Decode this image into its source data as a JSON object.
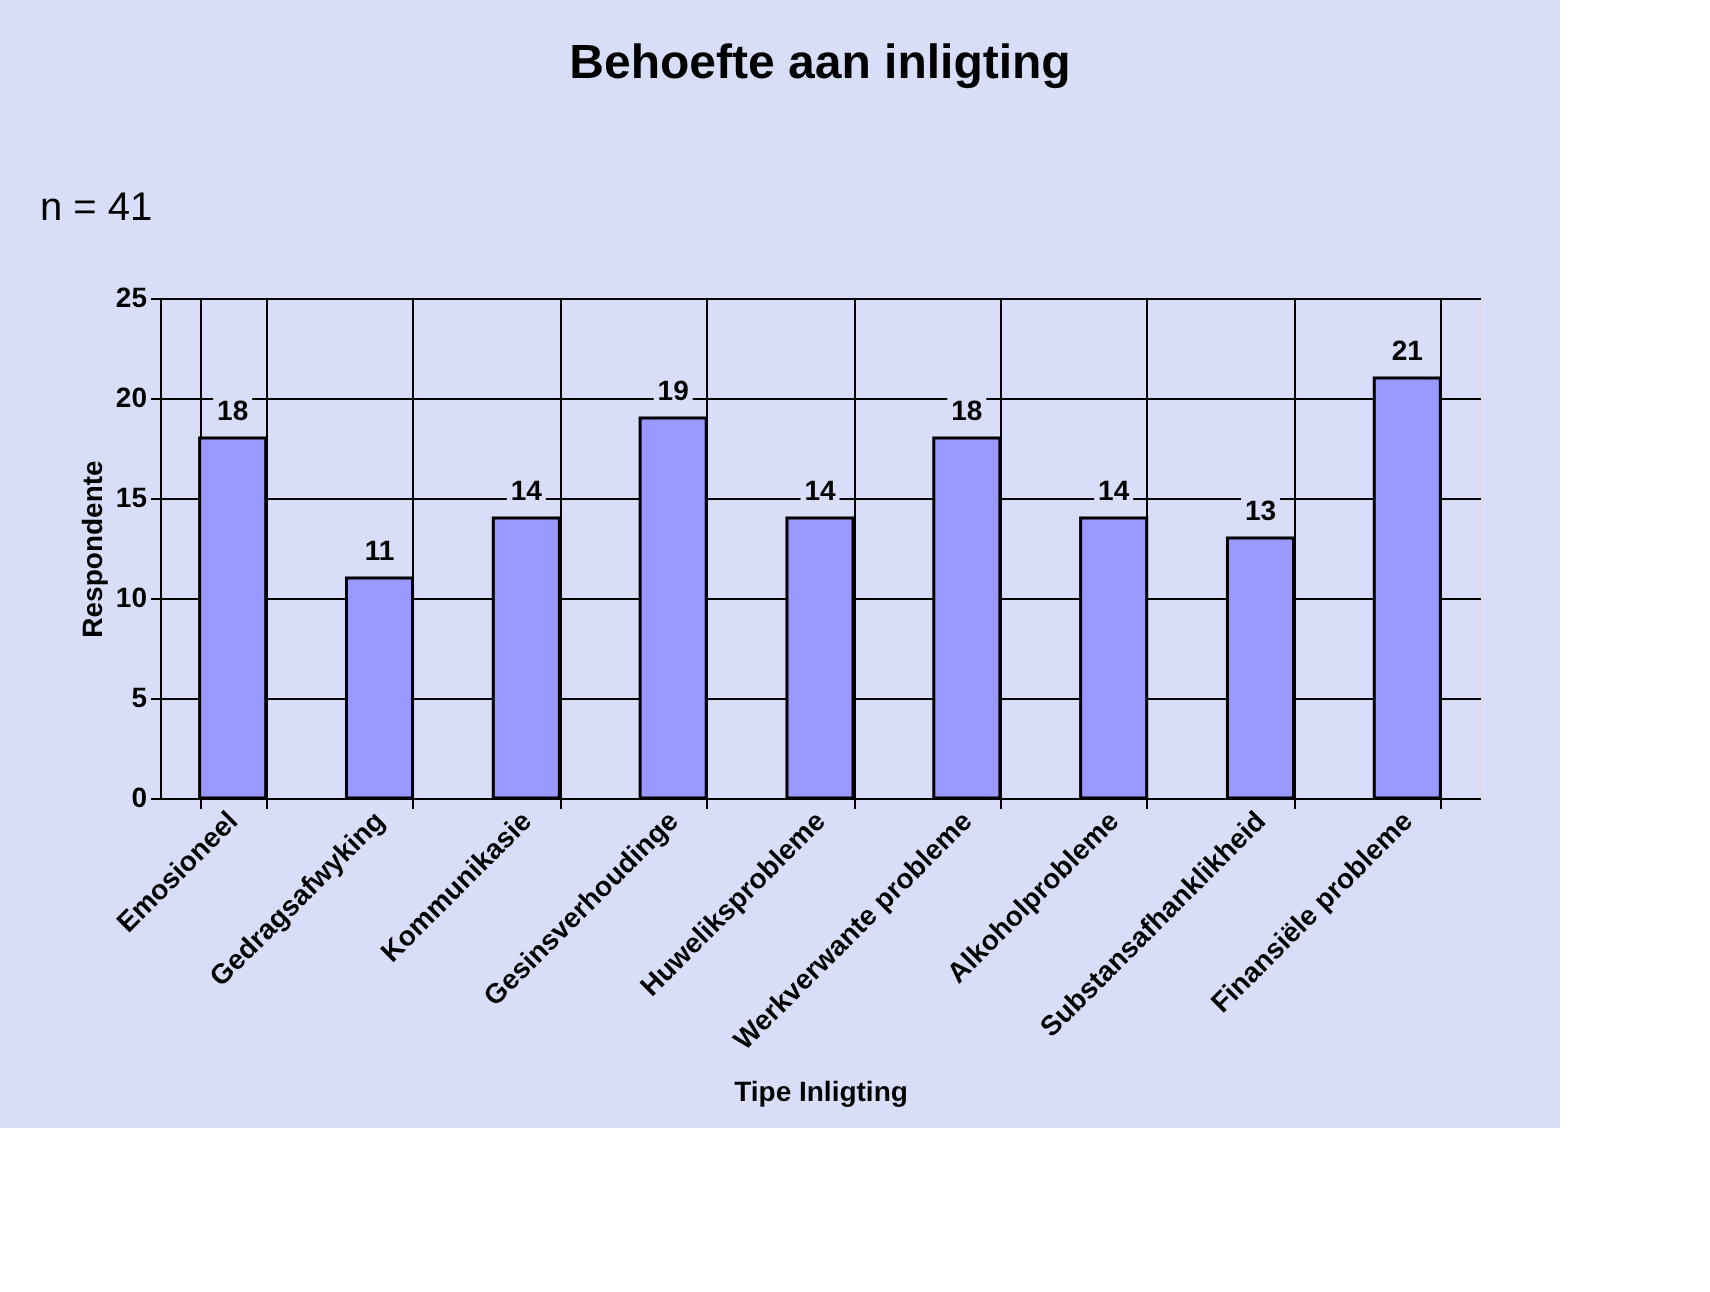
{
  "chart_data": {
    "type": "bar",
    "title": "Behoefte aan inligting",
    "annotations": [
      "n = 41"
    ],
    "xlabel": "Tipe Inligting",
    "ylabel": "Respondente",
    "categories": [
      "Emosioneel",
      "Gedragsafwyking",
      "Kommunikasie",
      "Gesinsverhoudinge",
      "Huweliksprobleme",
      "Werkverwante probleme",
      "Alkoholprobleme",
      "Substansafhanklikheid",
      "Finansiële probleme"
    ],
    "values": [
      18,
      11,
      14,
      19,
      14,
      18,
      14,
      13,
      21
    ],
    "color": "#9999ff",
    "ylim": [
      0,
      25
    ],
    "yticks": [
      0,
      5,
      10,
      15,
      20,
      25
    ],
    "grid": true,
    "data_labels": true
  }
}
